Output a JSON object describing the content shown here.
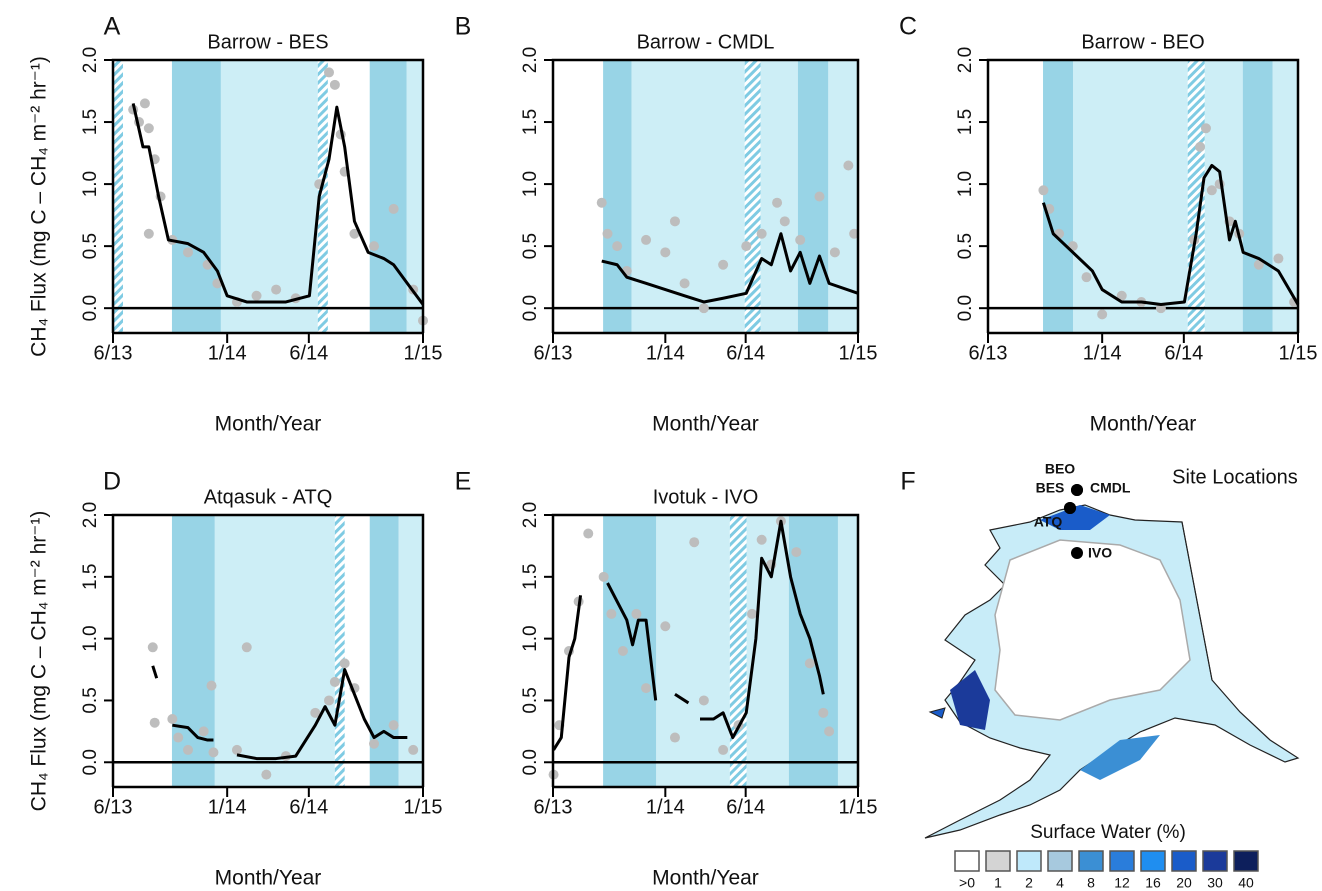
{
  "chart_data": [
    {
      "type": "line",
      "panel": "A",
      "title": "Barrow - BES",
      "xlabel": "Month/Year",
      "ylabel": "CH₄ Flux (mg C – CH₄ m⁻² hr⁻¹)",
      "xlim": [
        2013.417,
        2015.0
      ],
      "xticks": [
        {
          "value": 2013.417,
          "label": "6/13"
        },
        {
          "value": 2014.0,
          "label": "1/14"
        },
        {
          "value": 2014.417,
          "label": "6/14"
        },
        {
          "value": 2015.0,
          "label": "1/15"
        }
      ],
      "ylim": [
        -0.2,
        2.0
      ],
      "yticks": [
        {
          "value": 0,
          "label": "0.0"
        },
        {
          "value": 0.5,
          "label": "0.5"
        },
        {
          "value": 1,
          "label": "1.0"
        },
        {
          "value": 1.5,
          "label": "1.5"
        },
        {
          "value": 2,
          "label": "2.0"
        }
      ],
      "band_colors": {
        "light": "#cdeef6",
        "dark": "#98d4e6",
        "hatch": "#7fcbe3"
      },
      "bands": [
        {
          "kind": "hatch",
          "start": 2013.417,
          "end": 2013.468
        },
        {
          "kind": "dark",
          "start": 2013.718,
          "end": 2013.968
        },
        {
          "kind": "light",
          "start": 2013.968,
          "end": 2014.463
        },
        {
          "kind": "hatch",
          "start": 2014.463,
          "end": 2014.514
        },
        {
          "kind": "dark",
          "start": 2014.728,
          "end": 2014.917
        },
        {
          "kind": "light",
          "start": 2014.917,
          "end": 2015.0
        }
      ],
      "points": {
        "color": "#bdbdbd",
        "x": [
          2013.52,
          2013.55,
          2013.58,
          2013.6,
          2013.63,
          2013.66,
          2013.6,
          2013.72,
          2013.8,
          2013.9,
          2013.95,
          2014.05,
          2014.15,
          2014.25,
          2014.35,
          2014.47,
          2014.52,
          2014.55,
          2014.58,
          2014.6,
          2014.65,
          2014.75,
          2014.85,
          2014.95,
          2015.0
        ],
        "y": [
          1.6,
          1.5,
          1.65,
          1.45,
          1.2,
          0.9,
          0.6,
          0.55,
          0.45,
          0.35,
          0.2,
          0.05,
          0.1,
          0.15,
          0.08,
          1.0,
          1.9,
          1.8,
          1.4,
          1.1,
          0.6,
          0.5,
          0.8,
          0.15,
          -0.1
        ]
      },
      "series": [
        {
          "color": "#000000",
          "x": [
            2013.52,
            2013.57,
            2013.6,
            2013.65,
            2013.7,
            2013.8,
            2013.88,
            2013.95,
            2014.0,
            2014.1,
            2014.2,
            2014.3,
            2014.42,
            2014.47,
            2014.52,
            2014.56,
            2014.6,
            2014.65,
            2014.72,
            2014.8,
            2014.85,
            2014.92,
            2015.0
          ],
          "values": [
            1.65,
            1.3,
            1.3,
            0.9,
            0.55,
            0.52,
            0.45,
            0.3,
            0.1,
            0.05,
            0.05,
            0.05,
            0.1,
            0.9,
            1.2,
            1.62,
            1.3,
            0.7,
            0.45,
            0.4,
            0.35,
            0.2,
            0.03
          ]
        }
      ]
    },
    {
      "type": "line",
      "panel": "B",
      "title": "Barrow - CMDL",
      "xlabel": "Month/Year",
      "xlim": [
        2013.417,
        2015.0
      ],
      "xticks": [
        {
          "value": 2013.417,
          "label": "6/13"
        },
        {
          "value": 2014.0,
          "label": "1/14"
        },
        {
          "value": 2014.417,
          "label": "6/14"
        },
        {
          "value": 2015.0,
          "label": "1/15"
        }
      ],
      "ylim": [
        -0.2,
        2.0
      ],
      "yticks": [
        {
          "value": 0,
          "label": "0.0"
        },
        {
          "value": 0.5,
          "label": "0.5"
        },
        {
          "value": 1,
          "label": "1.0"
        },
        {
          "value": 1.5,
          "label": "1.5"
        },
        {
          "value": 2,
          "label": "2.0"
        }
      ],
      "band_colors": {
        "light": "#cdeef6",
        "dark": "#98d4e6",
        "hatch": "#7fcbe3"
      },
      "bands": [
        {
          "kind": "dark",
          "start": 2013.677,
          "end": 2013.825
        },
        {
          "kind": "light",
          "start": 2013.825,
          "end": 2014.412
        },
        {
          "kind": "hatch",
          "start": 2014.412,
          "end": 2014.494
        },
        {
          "kind": "light",
          "start": 2014.494,
          "end": 2014.688
        },
        {
          "kind": "dark",
          "start": 2014.688,
          "end": 2014.846
        },
        {
          "kind": "light",
          "start": 2014.846,
          "end": 2015.0
        }
      ],
      "points": {
        "color": "#bdbdbd",
        "x": [
          2013.67,
          2013.7,
          2013.75,
          2013.8,
          2013.9,
          2014.0,
          2014.05,
          2014.1,
          2014.2,
          2014.3,
          2014.42,
          2014.5,
          2014.58,
          2014.62,
          2014.7,
          2014.8,
          2014.88,
          2014.95,
          2014.98
        ],
        "y": [
          0.85,
          0.6,
          0.5,
          0.3,
          0.55,
          0.45,
          0.7,
          0.2,
          0.0,
          0.35,
          0.5,
          0.6,
          0.85,
          0.7,
          0.55,
          0.9,
          0.45,
          1.15,
          0.6
        ]
      },
      "series": [
        {
          "color": "#000000",
          "x": [
            2013.67,
            2013.75,
            2013.8,
            2013.9,
            2014.0,
            2014.1,
            2014.2,
            2014.3,
            2014.42,
            2014.5,
            2014.55,
            2014.6,
            2014.65,
            2014.7,
            2014.75,
            2014.8,
            2014.85,
            2015.0
          ],
          "values": [
            0.38,
            0.35,
            0.25,
            0.2,
            0.15,
            0.1,
            0.05,
            0.08,
            0.12,
            0.4,
            0.35,
            0.6,
            0.3,
            0.45,
            0.2,
            0.42,
            0.2,
            0.12
          ]
        }
      ]
    },
    {
      "type": "line",
      "panel": "C",
      "title": "Barrow - BEO",
      "xlabel": "Month/Year",
      "xlim": [
        2013.417,
        2015.0
      ],
      "xticks": [
        {
          "value": 2013.417,
          "label": "6/13"
        },
        {
          "value": 2014.0,
          "label": "1/14"
        },
        {
          "value": 2014.417,
          "label": "6/14"
        },
        {
          "value": 2015.0,
          "label": "1/15"
        }
      ],
      "ylim": [
        -0.2,
        2.0
      ],
      "yticks": [
        {
          "value": 0,
          "label": "0.0"
        },
        {
          "value": 0.5,
          "label": "0.5"
        },
        {
          "value": 1,
          "label": "1.0"
        },
        {
          "value": 1.5,
          "label": "1.5"
        },
        {
          "value": 2,
          "label": "2.0"
        }
      ],
      "band_colors": {
        "light": "#cdeef6",
        "dark": "#98d4e6",
        "hatch": "#7fcbe3"
      },
      "bands": [
        {
          "kind": "dark",
          "start": 2013.698,
          "end": 2013.851
        },
        {
          "kind": "light",
          "start": 2013.851,
          "end": 2014.437
        },
        {
          "kind": "hatch",
          "start": 2014.437,
          "end": 2014.524
        },
        {
          "kind": "light",
          "start": 2014.524,
          "end": 2014.718
        },
        {
          "kind": "dark",
          "start": 2014.718,
          "end": 2014.871
        },
        {
          "kind": "light",
          "start": 2014.871,
          "end": 2015.0
        }
      ],
      "points": {
        "color": "#bdbdbd",
        "x": [
          2013.7,
          2013.73,
          2013.78,
          2013.85,
          2013.92,
          2014.0,
          2014.1,
          2014.2,
          2014.3,
          2014.47,
          2014.5,
          2014.53,
          2014.56,
          2014.6,
          2014.65,
          2014.7,
          2014.8,
          2014.9,
          2014.98
        ],
        "y": [
          0.95,
          0.8,
          0.6,
          0.5,
          0.25,
          -0.05,
          0.1,
          0.05,
          0.0,
          0.55,
          1.3,
          1.45,
          0.95,
          1.0,
          0.7,
          0.6,
          0.35,
          0.4,
          0.05
        ]
      },
      "series": [
        {
          "color": "#000000",
          "x": [
            2013.7,
            2013.75,
            2013.85,
            2013.95,
            2014.0,
            2014.1,
            2014.2,
            2014.3,
            2014.42,
            2014.48,
            2014.52,
            2014.56,
            2014.6,
            2014.65,
            2014.68,
            2014.72,
            2014.8,
            2014.9,
            2015.0
          ],
          "values": [
            0.85,
            0.6,
            0.45,
            0.3,
            0.15,
            0.05,
            0.05,
            0.03,
            0.05,
            0.6,
            1.05,
            1.15,
            1.1,
            0.55,
            0.7,
            0.45,
            0.4,
            0.3,
            0.03
          ]
        }
      ]
    },
    {
      "type": "line",
      "panel": "D",
      "title": "Atqasuk - ATQ",
      "xlabel": "Month/Year",
      "ylabel": "CH₄ Flux (mg C – CH₄ m⁻² hr⁻¹)",
      "xlim": [
        2013.417,
        2015.0
      ],
      "xticks": [
        {
          "value": 2013.417,
          "label": "6/13"
        },
        {
          "value": 2014.0,
          "label": "1/14"
        },
        {
          "value": 2014.417,
          "label": "6/14"
        },
        {
          "value": 2015.0,
          "label": "1/15"
        }
      ],
      "ylim": [
        -0.2,
        2.0
      ],
      "yticks": [
        {
          "value": 0,
          "label": "0.0"
        },
        {
          "value": 0.5,
          "label": "0.5"
        },
        {
          "value": 1,
          "label": "1.0"
        },
        {
          "value": 1.5,
          "label": "1.5"
        },
        {
          "value": 2,
          "label": "2.0"
        }
      ],
      "band_colors": {
        "light": "#cdeef6",
        "dark": "#98d4e6",
        "hatch": "#7fcbe3"
      },
      "bands": [
        {
          "kind": "dark",
          "start": 2013.718,
          "end": 2013.937
        },
        {
          "kind": "light",
          "start": 2013.937,
          "end": 2014.55
        },
        {
          "kind": "hatch",
          "start": 2014.55,
          "end": 2014.6
        },
        {
          "kind": "dark",
          "start": 2014.728,
          "end": 2014.876
        },
        {
          "kind": "light",
          "start": 2014.876,
          "end": 2015.0
        }
      ],
      "points": {
        "color": "#bdbdbd",
        "x": [
          2013.62,
          2013.63,
          2013.72,
          2013.75,
          2013.8,
          2013.88,
          2013.92,
          2013.93,
          2014.1,
          2014.05,
          2014.2,
          2014.3,
          2014.45,
          2014.52,
          2014.55,
          2014.6,
          2014.65,
          2014.75,
          2014.85,
          2014.95
        ],
        "y": [
          0.93,
          0.32,
          0.35,
          0.2,
          0.1,
          0.25,
          0.62,
          0.08,
          0.93,
          0.1,
          -0.1,
          0.05,
          0.4,
          0.5,
          0.65,
          0.8,
          0.6,
          0.15,
          0.3,
          0.1
        ]
      },
      "series": [
        {
          "color": "#000000",
          "x": [
            2013.62,
            2013.64,
            2013.68,
            2013.72,
            2013.8,
            2013.85,
            2013.9,
            2013.93,
            2014.0,
            2014.05,
            2014.15,
            2014.25,
            2014.35,
            2014.45,
            2014.5,
            2014.55,
            2014.6,
            2014.65,
            2014.7,
            2014.75,
            2014.8,
            2014.85,
            2014.92
          ],
          "values": [
            0.78,
            0.68,
            null,
            0.3,
            0.28,
            0.2,
            0.18,
            0.18,
            null,
            0.06,
            0.03,
            0.03,
            0.05,
            0.3,
            0.45,
            0.3,
            0.75,
            0.55,
            0.35,
            0.2,
            0.25,
            0.2,
            0.2
          ]
        }
      ]
    },
    {
      "type": "line",
      "panel": "E",
      "title": "Ivotuk - IVO",
      "xlabel": "Month/Year",
      "xlim": [
        2013.417,
        2015.0
      ],
      "xticks": [
        {
          "value": 2013.417,
          "label": "6/13"
        },
        {
          "value": 2014.0,
          "label": "1/14"
        },
        {
          "value": 2014.417,
          "label": "6/14"
        },
        {
          "value": 2015.0,
          "label": "1/15"
        }
      ],
      "ylim": [
        -0.2,
        2.0
      ],
      "yticks": [
        {
          "value": 0,
          "label": "0.0"
        },
        {
          "value": 0.5,
          "label": "0.5"
        },
        {
          "value": 1,
          "label": "1.0"
        },
        {
          "value": 1.5,
          "label": "1.5"
        },
        {
          "value": 2,
          "label": "2.0"
        }
      ],
      "band_colors": {
        "light": "#cdeef6",
        "dark": "#98d4e6",
        "hatch": "#7fcbe3"
      },
      "bands": [
        {
          "kind": "dark",
          "start": 2013.677,
          "end": 2013.953
        },
        {
          "kind": "light",
          "start": 2013.953,
          "end": 2014.335
        },
        {
          "kind": "hatch",
          "start": 2014.335,
          "end": 2014.422
        },
        {
          "kind": "light",
          "start": 2014.422,
          "end": 2014.641
        },
        {
          "kind": "dark",
          "start": 2014.641,
          "end": 2014.896
        },
        {
          "kind": "light",
          "start": 2014.896,
          "end": 2015.0
        }
      ],
      "points": {
        "color": "#bdbdbd",
        "x": [
          2013.42,
          2013.45,
          2013.5,
          2013.55,
          2013.6,
          2013.68,
          2013.72,
          2013.78,
          2013.85,
          2013.9,
          2014.0,
          2014.05,
          2014.15,
          2014.2,
          2014.3,
          2014.38,
          2014.45,
          2014.5,
          2014.55,
          2014.6,
          2014.68,
          2014.75,
          2014.82,
          2014.85
        ],
        "y": [
          -0.1,
          0.3,
          0.9,
          1.3,
          1.85,
          1.5,
          1.2,
          0.9,
          1.2,
          0.6,
          1.1,
          0.2,
          1.78,
          0.5,
          0.1,
          0.3,
          1.2,
          1.8,
          1.6,
          1.95,
          1.7,
          0.8,
          0.4,
          0.25
        ]
      },
      "series": [
        {
          "color": "#000000",
          "x": [
            2013.42,
            2013.46,
            2013.5,
            2013.53,
            2013.56,
            2013.63,
            2013.7,
            2013.75,
            2013.8,
            2013.83,
            2013.86,
            2013.9,
            2013.95,
            2014.0,
            2014.05,
            2014.12,
            2014.15,
            2014.18,
            2014.25,
            2014.3,
            2014.35,
            2014.42,
            2014.47,
            2014.5,
            2014.55,
            2014.6,
            2014.65,
            2014.7,
            2014.75,
            2014.8,
            2014.82
          ],
          "values": [
            0.1,
            0.2,
            0.85,
            1.0,
            1.35,
            null,
            1.45,
            1.3,
            1.15,
            0.95,
            1.15,
            1.15,
            0.5,
            null,
            0.55,
            0.48,
            null,
            0.35,
            0.35,
            0.4,
            0.2,
            0.4,
            1.0,
            1.65,
            1.5,
            1.95,
            1.5,
            1.2,
            1.0,
            0.7,
            0.55
          ]
        }
      ]
    },
    {
      "type": "map",
      "panel": "F",
      "title": "Site Locations",
      "sites": [
        {
          "name": "BEO"
        },
        {
          "name": "BES"
        },
        {
          "name": "CMDL"
        },
        {
          "name": "ATQ"
        },
        {
          "name": "IVO"
        }
      ],
      "legend": {
        "title": "Surface Water (%)",
        "labels": [
          ">0",
          "1",
          "2",
          "4",
          "8",
          "12",
          "16",
          "20",
          "30",
          "40"
        ],
        "colors": [
          "#ffffff",
          "#d4d4d4",
          "#bfe9fb",
          "#a7c9de",
          "#3b8fd4",
          "#2a7ddb",
          "#1f8ef0",
          "#1a5cc9",
          "#1b3a9a",
          "#0d1f5c"
        ]
      }
    }
  ]
}
